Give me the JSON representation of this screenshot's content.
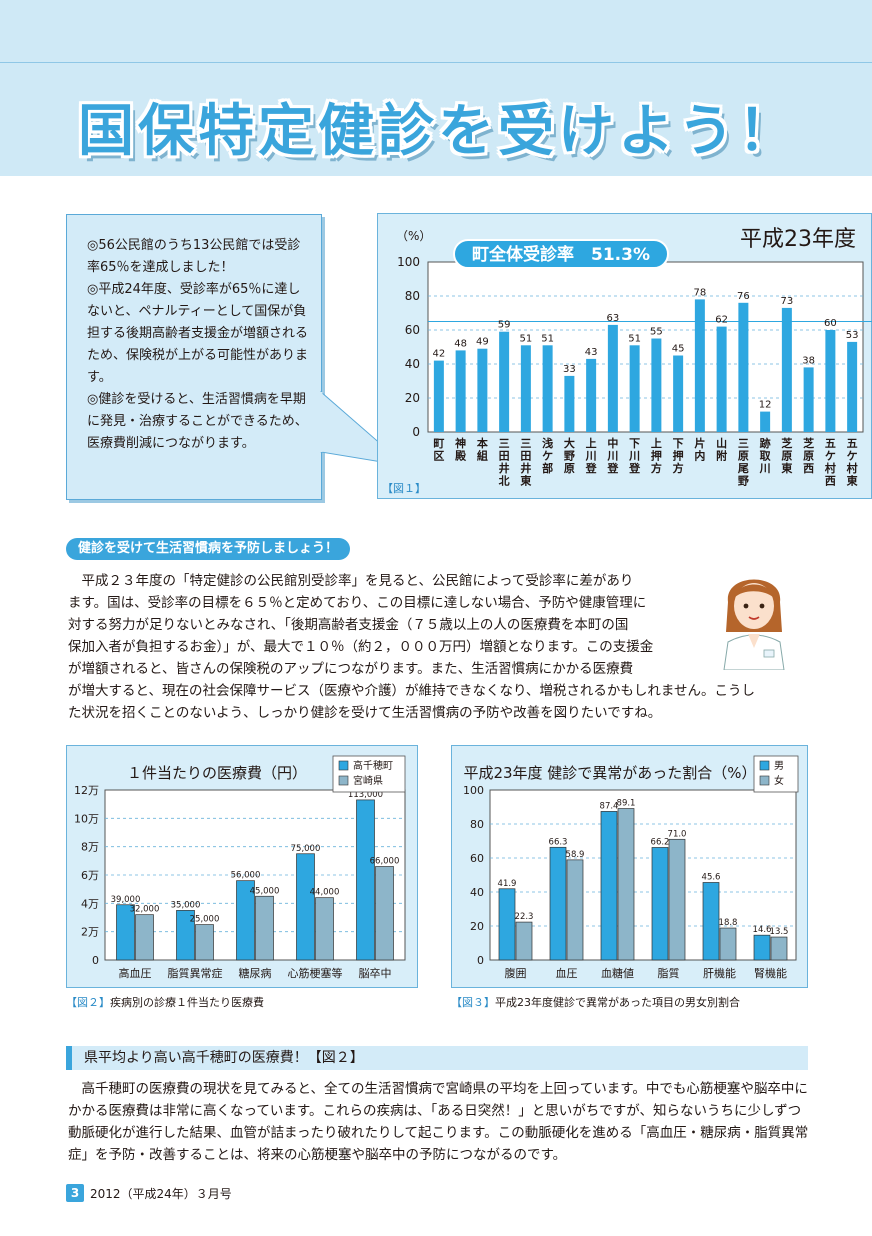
{
  "header": {
    "title": "国保特定健診を受けよう！"
  },
  "callout": {
    "items": [
      "◎56公民館のうち13公民館では受診率65％を達成しました！",
      "◎平成24年度、受診率が65％に達しないと、ペナルティーとして国保が負担する後期高齢者支援金が増額されるため、保険税が上がる可能性があります。",
      "◎健診を受けると、生活習慣病を早期に発見・治療することができるため、医療費削減につながります。"
    ]
  },
  "chart_data": [
    {
      "type": "bar",
      "title": "平成23年度",
      "subtitle": "町全体受診率　51.3%",
      "ylabel": "（%）",
      "ylim": [
        0,
        100
      ],
      "yticks": [
        0,
        20,
        40,
        60,
        80,
        100
      ],
      "reference_line": 65,
      "categories": [
        "町区",
        "神殿",
        "本組",
        "三田井北",
        "三田井東",
        "浅ケ部",
        "大野原",
        "上川登",
        "中川登",
        "下川登",
        "上押方",
        "下押方",
        "片内",
        "山附",
        "三原尾野",
        "跡取川",
        "芝原東",
        "芝原西",
        "五ケ村西",
        "五ケ村東"
      ],
      "values": [
        42,
        48,
        49,
        59,
        51,
        51,
        33,
        43,
        63,
        51,
        55,
        45,
        78,
        62,
        76,
        12,
        73,
        38,
        60,
        53
      ],
      "caption": "【図１】",
      "color": "#2ea7e0"
    },
    {
      "type": "bar",
      "title": "１件当たりの医療費（円）",
      "ylim": [
        0,
        120000
      ],
      "yticks": [
        0,
        20000,
        40000,
        60000,
        80000,
        100000,
        120000
      ],
      "ytick_labels": [
        "0",
        "2万",
        "4万",
        "6万",
        "8万",
        "10万",
        "12万"
      ],
      "categories": [
        "高血圧",
        "脂質異常症",
        "糖尿病",
        "心筋梗塞等",
        "脳卒中"
      ],
      "series": [
        {
          "name": "高千穂町",
          "values": [
            39000,
            35000,
            56000,
            75000,
            113000
          ],
          "labels": [
            "39,000",
            "35,000",
            "56,000",
            "75,000",
            "113,000"
          ],
          "color": "#2ea7e0"
        },
        {
          "name": "宮崎県",
          "values": [
            32000,
            25000,
            45000,
            44000,
            66000
          ],
          "labels": [
            "32,000",
            "25,000",
            "45,000",
            "44,000",
            "66,000"
          ],
          "color": "#8db5c9"
        }
      ],
      "caption_fig": "【図２】",
      "caption_text": "疾病別の診療１件当たり医療費"
    },
    {
      "type": "bar",
      "title": "平成23年度 健診で異常があった割合（%）",
      "ylim": [
        0,
        100
      ],
      "yticks": [
        0,
        20,
        40,
        60,
        80,
        100
      ],
      "categories": [
        "腹囲",
        "血圧",
        "血糖値",
        "脂質",
        "肝機能",
        "腎機能"
      ],
      "series": [
        {
          "name": "男",
          "values": [
            41.9,
            66.3,
            87.4,
            66.2,
            45.6,
            14.6
          ],
          "color": "#2ea7e0"
        },
        {
          "name": "女",
          "values": [
            22.3,
            58.9,
            89.1,
            71.0,
            18.8,
            13.5
          ],
          "color": "#8db5c9"
        }
      ],
      "caption_fig": "【図３】",
      "caption_text": "平成23年度健診で異常があった項目の男女別割合"
    }
  ],
  "section1": {
    "heading": "健診を受けて生活習慣病を予防しましょう！",
    "lines": [
      "平成２３年度の「特定健診の公民館別受診率」を見ると、公民館によって受診率に差があり",
      "ます。国は、受診率の目標を６５％と定めており、この目標に達しない場合、予防や健康管理に",
      "対する努力が足りないとみなされ、「後期高齢者支援金（７５歳以上の人の医療費を本町の国",
      "保加入者が負担するお金）」が、最大で１０％（約２，０００万円）増額となります。この支援金",
      "が増額されると、皆さんの保険税のアップにつながります。また、生活習慣病にかかる医療費",
      "が増大すると、現在の社会保障サービス（医療や介護）が維持できなくなり、増税されるかもしれません。こうし",
      "た状況を招くことのないよう、しっかり健診を受けて生活習慣病の予防や改善を図りたいですね。"
    ]
  },
  "section2": {
    "heading": "県平均より高い高千穂町の医療費！【図２】",
    "text": "高千穂町の医療費の現状を見てみると、全ての生活習慣病で宮崎県の平均を上回っています。中でも心筋梗塞や脳卒中にかかる医療費は非常に高くなっています。これらの疾病は、「ある日突然！」と思いがちですが、知らないうちに少しずつ動脈硬化が進行した結果、血管が詰まったり破れたりして起こります。この動脈硬化を進める「高血圧・糖尿病・脂質異常症」を予防・改善することは、将来の心筋梗塞や脳卒中の予防につながるのです。"
  },
  "footer": {
    "page": "3",
    "issue": "2012（平成24年）３月号"
  }
}
